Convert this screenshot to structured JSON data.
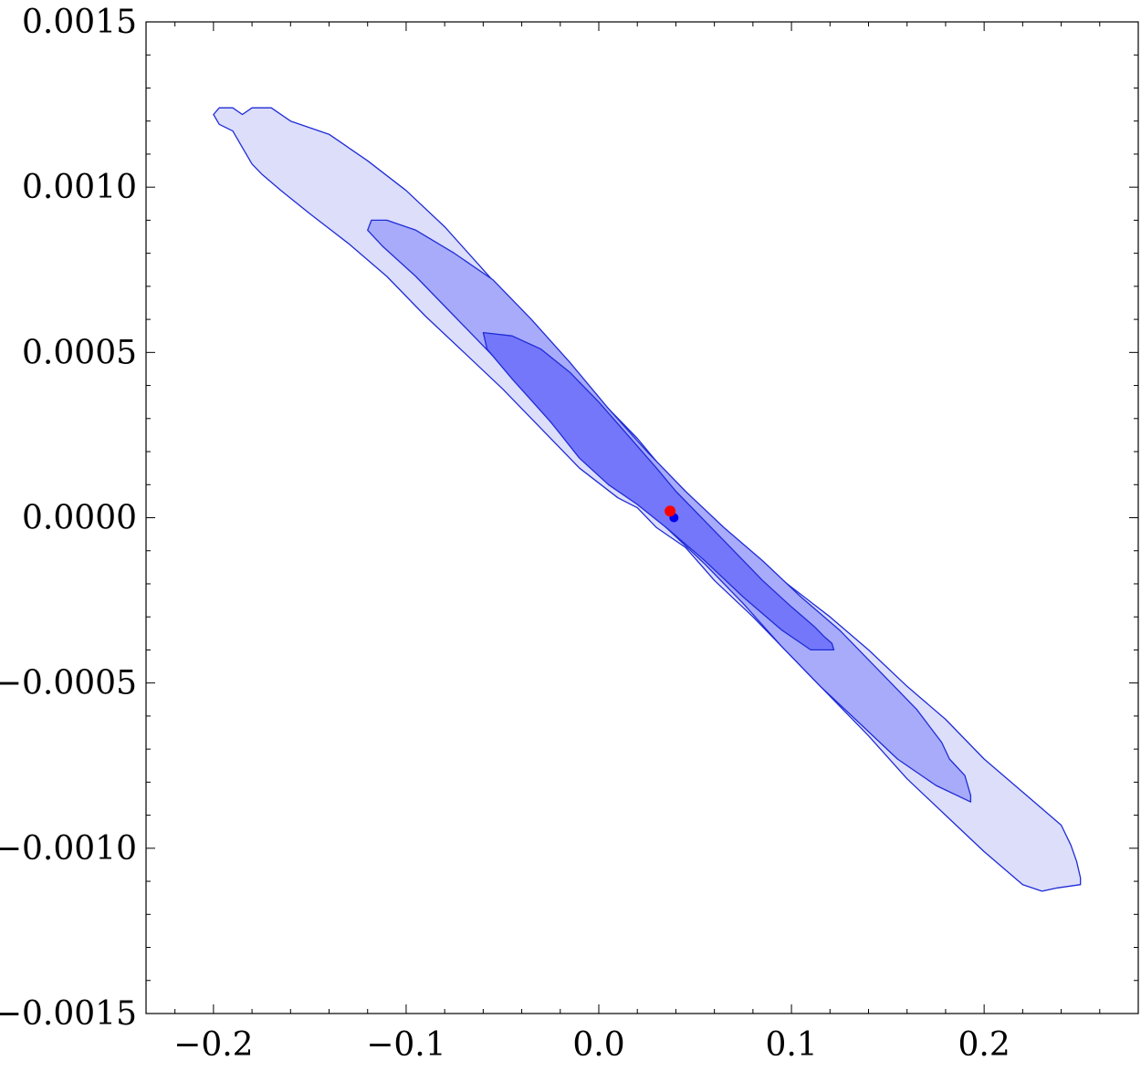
{
  "chart_data": {
    "type": "contour",
    "title": "",
    "xlabel": "",
    "ylabel": "",
    "xlim": [
      -0.235,
      0.28
    ],
    "ylim": [
      -0.0015,
      0.0015
    ],
    "grid": false,
    "legend": "none",
    "x_ticks": [
      {
        "value": -0.2,
        "label": "−0.2"
      },
      {
        "value": -0.1,
        "label": "−0.1"
      },
      {
        "value": 0.0,
        "label": "0.0"
      },
      {
        "value": 0.1,
        "label": "0.1"
      },
      {
        "value": 0.2,
        "label": "0.2"
      }
    ],
    "y_ticks": [
      {
        "value": 0.0015,
        "label": "0.0015"
      },
      {
        "value": 0.001,
        "label": "0.0010"
      },
      {
        "value": 0.0005,
        "label": "0.0005"
      },
      {
        "value": 0.0,
        "label": "0.0000"
      },
      {
        "value": -0.0005,
        "label": "−0.0005"
      },
      {
        "value": -0.001,
        "label": "−0.0010"
      },
      {
        "value": -0.0015,
        "label": "−0.0015"
      }
    ],
    "regions": [
      {
        "level": "outer",
        "fill": "#dcdefa",
        "stroke": "#1f2bd6",
        "points": [
          [
            -0.2,
            0.00122
          ],
          [
            -0.197,
            0.00119
          ],
          [
            -0.19,
            0.00117
          ],
          [
            -0.185,
            0.00112
          ],
          [
            -0.18,
            0.00107
          ],
          [
            -0.175,
            0.00104
          ],
          [
            -0.165,
            0.00099
          ],
          [
            -0.15,
            0.00092
          ],
          [
            -0.13,
            0.00083
          ],
          [
            -0.11,
            0.00073
          ],
          [
            -0.09,
            0.00061
          ],
          [
            -0.07,
            0.0005
          ],
          [
            -0.05,
            0.00039
          ],
          [
            -0.03,
            0.00027
          ],
          [
            -0.01,
            0.00015
          ],
          [
            0.01,
            6e-05
          ],
          [
            0.02,
            3e-05
          ],
          [
            0.03,
            -3e-05
          ],
          [
            0.045,
            -9e-05
          ],
          [
            0.06,
            -0.00019
          ],
          [
            0.08,
            -0.0003
          ],
          [
            0.1,
            -0.00042
          ],
          [
            0.12,
            -0.00054
          ],
          [
            0.14,
            -0.00066
          ],
          [
            0.16,
            -0.00079
          ],
          [
            0.18,
            -0.0009
          ],
          [
            0.2,
            -0.00101
          ],
          [
            0.22,
            -0.00111
          ],
          [
            0.23,
            -0.00113
          ],
          [
            0.238,
            -0.00112
          ],
          [
            0.25,
            -0.00111
          ],
          [
            0.25,
            -0.00109
          ],
          [
            0.248,
            -0.00104
          ],
          [
            0.245,
            -0.00099
          ],
          [
            0.24,
            -0.00093
          ],
          [
            0.232,
            -0.00089
          ],
          [
            0.22,
            -0.00083
          ],
          [
            0.2,
            -0.00073
          ],
          [
            0.18,
            -0.00061
          ],
          [
            0.16,
            -0.00051
          ],
          [
            0.14,
            -0.0004
          ],
          [
            0.12,
            -0.0003
          ],
          [
            0.1,
            -0.00021
          ],
          [
            0.08,
            -0.00012
          ],
          [
            0.06,
            -2e-05
          ],
          [
            0.05,
            5e-05
          ],
          [
            0.04,
            0.0001
          ],
          [
            0.02,
            0.00024
          ],
          [
            0.0,
            0.00036
          ],
          [
            -0.02,
            0.0005
          ],
          [
            -0.04,
            0.00062
          ],
          [
            -0.06,
            0.00075
          ],
          [
            -0.08,
            0.00088
          ],
          [
            -0.1,
            0.00099
          ],
          [
            -0.12,
            0.00108
          ],
          [
            -0.14,
            0.00116
          ],
          [
            -0.16,
            0.0012
          ],
          [
            -0.17,
            0.00124
          ],
          [
            -0.18,
            0.00124
          ],
          [
            -0.185,
            0.00122
          ],
          [
            -0.19,
            0.00124
          ],
          [
            -0.197,
            0.00124
          ]
        ]
      },
      {
        "level": "middle",
        "fill": "#a7abfa",
        "stroke": "#1f2bd6",
        "points": [
          [
            -0.118,
            0.0009
          ],
          [
            -0.12,
            0.00087
          ],
          [
            -0.112,
            0.00082
          ],
          [
            -0.095,
            0.00073
          ],
          [
            -0.075,
            0.00061
          ],
          [
            -0.055,
            0.00049
          ],
          [
            -0.035,
            0.00036
          ],
          [
            -0.015,
            0.00022
          ],
          [
            0.0,
            0.00013
          ],
          [
            0.015,
            8e-05
          ],
          [
            0.035,
            -3e-05
          ],
          [
            0.055,
            -0.00014
          ],
          [
            0.075,
            -0.00026
          ],
          [
            0.095,
            -0.00039
          ],
          [
            0.115,
            -0.00051
          ],
          [
            0.135,
            -0.00062
          ],
          [
            0.155,
            -0.00073
          ],
          [
            0.175,
            -0.00081
          ],
          [
            0.193,
            -0.00086
          ],
          [
            0.193,
            -0.00084
          ],
          [
            0.19,
            -0.00078
          ],
          [
            0.182,
            -0.00073
          ],
          [
            0.178,
            -0.00068
          ],
          [
            0.165,
            -0.00058
          ],
          [
            0.145,
            -0.00046
          ],
          [
            0.125,
            -0.00034
          ],
          [
            0.105,
            -0.00024
          ],
          [
            0.085,
            -0.00013
          ],
          [
            0.065,
            -3e-05
          ],
          [
            0.045,
            8e-05
          ],
          [
            0.025,
            0.0002
          ],
          [
            0.005,
            0.00033
          ],
          [
            -0.015,
            0.00047
          ],
          [
            -0.035,
            0.0006
          ],
          [
            -0.055,
            0.00072
          ],
          [
            -0.075,
            0.0008
          ],
          [
            -0.095,
            0.00087
          ],
          [
            -0.11,
            0.0009
          ]
        ]
      },
      {
        "level": "inner",
        "fill": "#7477fa",
        "stroke": "#1f2bd6",
        "points": [
          [
            -0.06,
            0.00056
          ],
          [
            -0.058,
            0.00051
          ],
          [
            -0.045,
            0.00042
          ],
          [
            -0.025,
            0.00029
          ],
          [
            -0.01,
            0.00018
          ],
          [
            0.005,
            0.0001
          ],
          [
            0.02,
            4e-05
          ],
          [
            0.035,
            -3e-05
          ],
          [
            0.055,
            -0.00013
          ],
          [
            0.075,
            -0.00024
          ],
          [
            0.095,
            -0.00034
          ],
          [
            0.11,
            -0.0004
          ],
          [
            0.122,
            -0.0004
          ],
          [
            0.121,
            -0.00038
          ],
          [
            0.117,
            -0.00036
          ],
          [
            0.112,
            -0.00033
          ],
          [
            0.1,
            -0.00027
          ],
          [
            0.085,
            -0.00019
          ],
          [
            0.07,
            -0.0001
          ],
          [
            0.055,
            -1e-05
          ],
          [
            0.04,
            8e-05
          ],
          [
            0.03,
            0.00015
          ],
          [
            0.015,
            0.00025
          ],
          [
            0.0,
            0.00035
          ],
          [
            -0.015,
            0.00044
          ],
          [
            -0.03,
            0.00051
          ],
          [
            -0.045,
            0.00055
          ]
        ]
      }
    ],
    "points": [
      {
        "name": "",
        "x": 0.039,
        "y": 0.0,
        "color": "#0000ee"
      },
      {
        "name": "",
        "x": 0.037,
        "y": 2e-05,
        "color": "#ff0000"
      }
    ]
  }
}
